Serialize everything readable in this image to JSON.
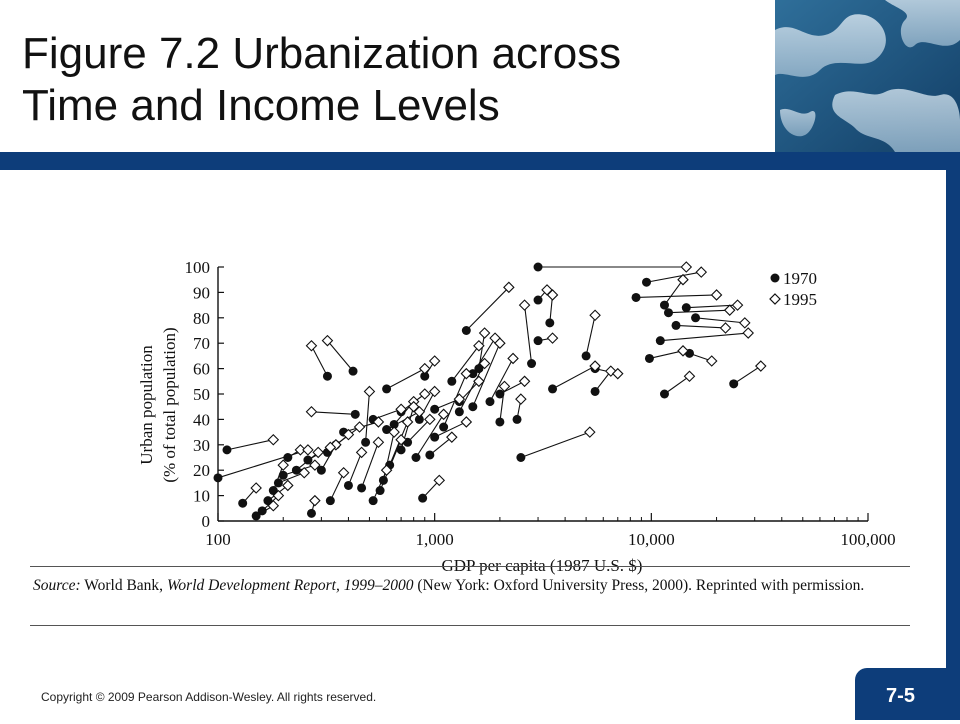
{
  "slide": {
    "title_line1": "Figure 7.2 Urbanization across",
    "title_line2": "Time and Income Levels",
    "banner_icon": "world-map-image",
    "copyright": "Copyright © 2009 Pearson Addison-Wesley. All rights reserved.",
    "slide_number": "7-5",
    "accent_color": "#0d3d7a"
  },
  "source": {
    "label": "Source:",
    "text_before": " World Bank, ",
    "title": "World Development Report, 1999–2000",
    "text_after": " (New York: Oxford University Press, 2000). Reprinted with permission."
  },
  "chart_data": {
    "type": "scatter",
    "title": "",
    "xlabel": "GDP per capita (1987 U.S. $)",
    "ylabel_line1": "Urban population",
    "ylabel_line2": "(% of total population)",
    "xscale": "log",
    "xlim": [
      100,
      100000
    ],
    "ylim": [
      0,
      100
    ],
    "x_ticks": [
      100,
      1000,
      10000,
      100000
    ],
    "x_tick_labels": [
      "100",
      "1,000",
      "10,000",
      "100,000"
    ],
    "y_ticks": [
      0,
      10,
      20,
      30,
      40,
      50,
      60,
      70,
      80,
      90,
      100
    ],
    "y_tick_labels": [
      "0",
      "10",
      "20",
      "30",
      "40",
      "50",
      "60",
      "70",
      "80",
      "90",
      "100"
    ],
    "grid": false,
    "legend_position": "top-right",
    "series": [
      {
        "name": "1970",
        "marker": "filled-circle"
      },
      {
        "name": "1995",
        "marker": "open-diamond"
      }
    ],
    "pairs": [
      {
        "x1970": 3000,
        "y1970": 100,
        "x1995": 14500,
        "y1995": 100
      },
      {
        "x1970": 9500,
        "y1970": 94,
        "x1995": 17000,
        "y1995": 98
      },
      {
        "x1970": 11500,
        "y1970": 85,
        "x1995": 14000,
        "y1995": 95
      },
      {
        "x1970": 8500,
        "y1970": 88,
        "x1995": 20000,
        "y1995": 89
      },
      {
        "x1970": 14500,
        "y1970": 84,
        "x1995": 25000,
        "y1995": 85
      },
      {
        "x1970": 12000,
        "y1970": 82,
        "x1995": 23000,
        "y1995": 83
      },
      {
        "x1970": 16000,
        "y1970": 80,
        "x1995": 27000,
        "y1995": 78
      },
      {
        "x1970": 13000,
        "y1970": 77,
        "x1995": 22000,
        "y1995": 76
      },
      {
        "x1970": 11000,
        "y1970": 71,
        "x1995": 28000,
        "y1995": 74
      },
      {
        "x1970": 15000,
        "y1970": 66,
        "x1995": 19000,
        "y1995": 63
      },
      {
        "x1970": 11500,
        "y1970": 50,
        "x1995": 15000,
        "y1995": 57
      },
      {
        "x1970": 24000,
        "y1970": 54,
        "x1995": 32000,
        "y1995": 61
      },
      {
        "x1970": 9800,
        "y1970": 64,
        "x1995": 14000,
        "y1995": 67
      },
      {
        "x1970": 5500,
        "y1970": 51,
        "x1995": 6500,
        "y1995": 59
      },
      {
        "x1970": 3500,
        "y1970": 52,
        "x1995": 5500,
        "y1995": 61
      },
      {
        "x1970": 3000,
        "y1970": 71,
        "x1995": 3500,
        "y1995": 72
      },
      {
        "x1970": 3000,
        "y1970": 87,
        "x1995": 3300,
        "y1995": 91
      },
      {
        "x1970": 3400,
        "y1970": 78,
        "x1995": 3500,
        "y1995": 89
      },
      {
        "x1970": 5000,
        "y1970": 65,
        "x1995": 5500,
        "y1995": 81
      },
      {
        "x1970": 2800,
        "y1970": 62,
        "x1995": 2600,
        "y1995": 85
      },
      {
        "x1970": 1400,
        "y1970": 75,
        "x1995": 2200,
        "y1995": 92
      },
      {
        "x1970": 1600,
        "y1970": 60,
        "x1995": 1700,
        "y1995": 74
      },
      {
        "x1970": 1500,
        "y1970": 58,
        "x1995": 1900,
        "y1995": 72
      },
      {
        "x1970": 900,
        "y1970": 57,
        "x1995": 1000,
        "y1995": 63
      },
      {
        "x1970": 600,
        "y1970": 52,
        "x1995": 900,
        "y1995": 60
      },
      {
        "x1970": 320,
        "y1970": 57,
        "x1995": 270,
        "y1995": 69
      },
      {
        "x1970": 420,
        "y1970": 59,
        "x1995": 320,
        "y1995": 71
      },
      {
        "x1970": 1200,
        "y1970": 55,
        "x1995": 1600,
        "y1995": 69
      },
      {
        "x1970": 1800,
        "y1970": 47,
        "x1995": 2300,
        "y1995": 64
      },
      {
        "x1970": 2000,
        "y1970": 50,
        "x1995": 2600,
        "y1995": 55
      },
      {
        "x1970": 2400,
        "y1970": 40,
        "x1995": 2500,
        "y1995": 48
      },
      {
        "x1970": 2000,
        "y1970": 39,
        "x1995": 2100,
        "y1995": 53
      },
      {
        "x1970": 1500,
        "y1970": 45,
        "x1995": 2000,
        "y1995": 70
      },
      {
        "x1970": 1300,
        "y1970": 43,
        "x1995": 1700,
        "y1995": 62
      },
      {
        "x1970": 1100,
        "y1970": 37,
        "x1995": 1400,
        "y1995": 58
      },
      {
        "x1970": 1000,
        "y1970": 44,
        "x1995": 1300,
        "y1995": 48
      },
      {
        "x1970": 850,
        "y1970": 40,
        "x1995": 1000,
        "y1995": 51
      },
      {
        "x1970": 700,
        "y1970": 43,
        "x1995": 900,
        "y1995": 50
      },
      {
        "x1970": 650,
        "y1970": 38,
        "x1995": 800,
        "y1995": 47
      },
      {
        "x1970": 520,
        "y1970": 40,
        "x1995": 700,
        "y1995": 44
      },
      {
        "x1970": 600,
        "y1970": 36,
        "x1995": 850,
        "y1995": 43
      },
      {
        "x1970": 480,
        "y1970": 31,
        "x1995": 500,
        "y1995": 51
      },
      {
        "x1970": 430,
        "y1970": 42,
        "x1995": 270,
        "y1995": 43
      },
      {
        "x1970": 380,
        "y1970": 35,
        "x1995": 550,
        "y1995": 39
      },
      {
        "x1970": 350,
        "y1970": 30,
        "x1995": 450,
        "y1995": 37
      },
      {
        "x1970": 320,
        "y1970": 27,
        "x1995": 400,
        "y1995": 34
      },
      {
        "x1970": 300,
        "y1970": 20,
        "x1995": 350,
        "y1995": 30
      },
      {
        "x1970": 260,
        "y1970": 24,
        "x1995": 330,
        "y1995": 29
      },
      {
        "x1970": 230,
        "y1970": 20,
        "x1995": 290,
        "y1995": 27
      },
      {
        "x1970": 210,
        "y1970": 25,
        "x1995": 240,
        "y1995": 28
      },
      {
        "x1970": 200,
        "y1970": 18,
        "x1995": 280,
        "y1995": 22
      },
      {
        "x1970": 190,
        "y1970": 15,
        "x1995": 250,
        "y1995": 19
      },
      {
        "x1970": 180,
        "y1970": 12,
        "x1995": 200,
        "y1995": 22
      },
      {
        "x1970": 170,
        "y1970": 8,
        "x1995": 210,
        "y1995": 14
      },
      {
        "x1970": 160,
        "y1970": 4,
        "x1995": 190,
        "y1995": 10
      },
      {
        "x1970": 130,
        "y1970": 7,
        "x1995": 150,
        "y1995": 13
      },
      {
        "x1970": 150,
        "y1970": 2,
        "x1995": 180,
        "y1995": 6
      },
      {
        "x1970": 110,
        "y1970": 28,
        "x1995": 180,
        "y1995": 32
      },
      {
        "x1970": 100,
        "y1970": 17,
        "x1995": 260,
        "y1995": 28
      },
      {
        "x1970": 270,
        "y1970": 3,
        "x1995": 280,
        "y1995": 8
      },
      {
        "x1970": 330,
        "y1970": 8,
        "x1995": 380,
        "y1995": 19
      },
      {
        "x1970": 400,
        "y1970": 14,
        "x1995": 460,
        "y1995": 27
      },
      {
        "x1970": 460,
        "y1970": 13,
        "x1995": 550,
        "y1995": 31
      },
      {
        "x1970": 520,
        "y1970": 8,
        "x1995": 600,
        "y1995": 20
      },
      {
        "x1970": 580,
        "y1970": 16,
        "x1995": 650,
        "y1995": 35
      },
      {
        "x1970": 560,
        "y1970": 12,
        "x1995": 700,
        "y1995": 32
      },
      {
        "x1970": 620,
        "y1970": 22,
        "x1995": 750,
        "y1995": 39
      },
      {
        "x1970": 700,
        "y1970": 28,
        "x1995": 800,
        "y1995": 45
      },
      {
        "x1970": 750,
        "y1970": 31,
        "x1995": 950,
        "y1995": 40
      },
      {
        "x1970": 820,
        "y1970": 25,
        "x1995": 1100,
        "y1995": 42
      },
      {
        "x1970": 880,
        "y1970": 9,
        "x1995": 1050,
        "y1995": 16
      },
      {
        "x1970": 950,
        "y1970": 26,
        "x1995": 1200,
        "y1995": 33
      },
      {
        "x1970": 1000,
        "y1970": 33,
        "x1995": 1400,
        "y1995": 39
      },
      {
        "x1970": 1300,
        "y1970": 47,
        "x1995": 1600,
        "y1995": 55
      },
      {
        "x1970": 2500,
        "y1970": 25,
        "x1995": 5200,
        "y1995": 35
      },
      {
        "x1970": 5500,
        "y1970": 60,
        "x1995": 7000,
        "y1995": 58
      }
    ]
  }
}
